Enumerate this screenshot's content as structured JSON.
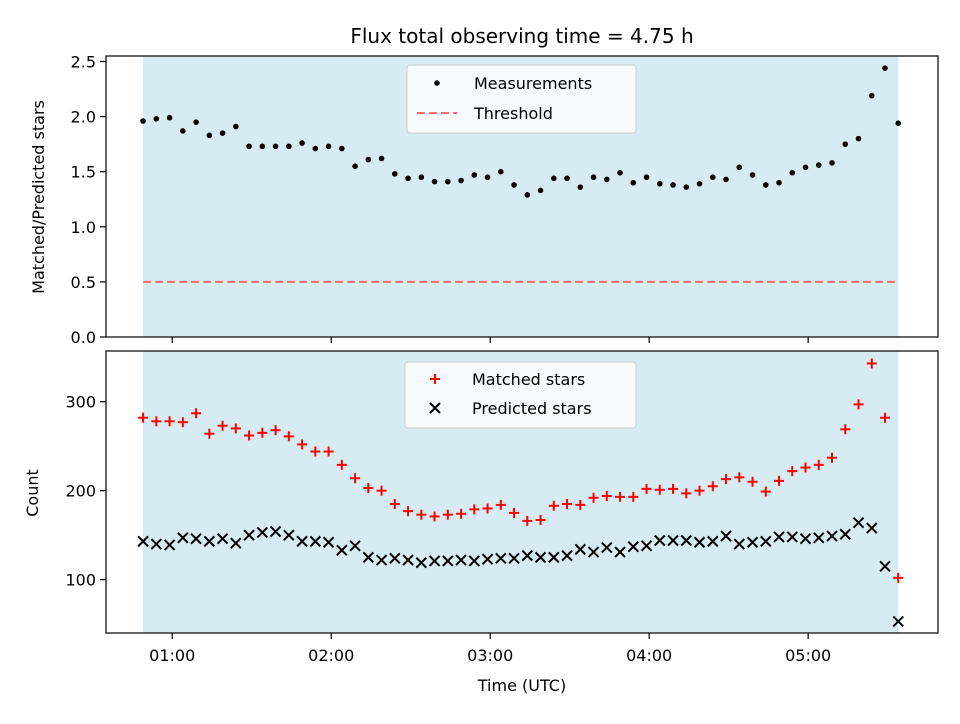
{
  "chart_data": [
    {
      "type": "scatter",
      "title": "Flux total observing time = 4.75 h",
      "xlabel": "",
      "ylabel": "Matched/Predicted stars",
      "ylim": [
        0,
        2.55
      ],
      "yticks": [
        "0.0",
        "0.5",
        "1.0",
        "1.5",
        "2.0",
        "2.5"
      ],
      "ytick_values": [
        0,
        0.5,
        1.0,
        1.5,
        2.0,
        2.5
      ],
      "legend_placement": "top-center",
      "observing_span": [
        "00:49",
        "05:34"
      ],
      "span_color": "#add8e6",
      "series": [
        {
          "name": "Measurements",
          "marker": "dot",
          "color": "#000000",
          "x": [
            "00:49",
            "00:54",
            "00:59",
            "01:04",
            "01:09",
            "01:14",
            "01:19",
            "01:24",
            "01:29",
            "01:34",
            "01:39",
            "01:44",
            "01:49",
            "01:54",
            "01:59",
            "02:04",
            "02:09",
            "02:14",
            "02:19",
            "02:24",
            "02:29",
            "02:34",
            "02:39",
            "02:44",
            "02:49",
            "02:54",
            "02:59",
            "03:04",
            "03:09",
            "03:14",
            "03:19",
            "03:24",
            "03:29",
            "03:34",
            "03:39",
            "03:44",
            "03:49",
            "03:54",
            "03:59",
            "04:04",
            "04:09",
            "04:14",
            "04:19",
            "04:24",
            "04:29",
            "04:34",
            "04:39",
            "04:44",
            "04:49",
            "04:54",
            "04:59",
            "05:04",
            "05:09",
            "05:14",
            "05:19",
            "05:24",
            "05:29",
            "05:34"
          ],
          "values": [
            1.96,
            1.98,
            1.99,
            1.87,
            1.95,
            1.83,
            1.85,
            1.91,
            1.73,
            1.73,
            1.73,
            1.73,
            1.76,
            1.71,
            1.73,
            1.71,
            1.55,
            1.61,
            1.62,
            1.48,
            1.44,
            1.45,
            1.41,
            1.41,
            1.42,
            1.47,
            1.45,
            1.5,
            1.38,
            1.29,
            1.33,
            1.44,
            1.44,
            1.36,
            1.45,
            1.43,
            1.49,
            1.4,
            1.45,
            1.39,
            1.38,
            1.36,
            1.39,
            1.45,
            1.43,
            1.54,
            1.47,
            1.38,
            1.4,
            1.49,
            1.54,
            1.56,
            1.58,
            1.75,
            1.8,
            2.19,
            2.44,
            1.94
          ]
        },
        {
          "name": "Threshold",
          "marker": "dashed-line",
          "color": "#ff6b6b",
          "y": 0.5
        }
      ]
    },
    {
      "type": "scatter",
      "title": "",
      "xlabel": "Time (UTC)",
      "ylabel": "Count",
      "ylim": [
        40,
        357
      ],
      "yticks": [
        "100",
        "200",
        "300"
      ],
      "ytick_values": [
        100,
        200,
        300
      ],
      "xlim": [
        "00:35",
        "05:49"
      ],
      "xticks": [
        "01:00",
        "02:00",
        "03:00",
        "04:00",
        "05:00"
      ],
      "legend_placement": "top-center",
      "observing_span": [
        "00:49",
        "05:34"
      ],
      "span_color": "#add8e6",
      "x": [
        "00:49",
        "00:54",
        "00:59",
        "01:04",
        "01:09",
        "01:14",
        "01:19",
        "01:24",
        "01:29",
        "01:34",
        "01:39",
        "01:44",
        "01:49",
        "01:54",
        "01:59",
        "02:04",
        "02:09",
        "02:14",
        "02:19",
        "02:24",
        "02:29",
        "02:34",
        "02:39",
        "02:44",
        "02:49",
        "02:54",
        "02:59",
        "03:04",
        "03:09",
        "03:14",
        "03:19",
        "03:24",
        "03:29",
        "03:34",
        "03:39",
        "03:44",
        "03:49",
        "03:54",
        "03:59",
        "04:04",
        "04:09",
        "04:14",
        "04:19",
        "04:24",
        "04:29",
        "04:34",
        "04:39",
        "04:44",
        "04:49",
        "04:54",
        "04:59",
        "05:04",
        "05:09",
        "05:14",
        "05:19",
        "05:24",
        "05:29",
        "05:34"
      ],
      "series": [
        {
          "name": "Matched stars",
          "marker": "plus",
          "color": "#ff0000",
          "values": [
            282,
            278,
            278,
            277,
            287,
            264,
            273,
            270,
            262,
            265,
            268,
            261,
            252,
            244,
            244,
            229,
            214,
            203,
            200,
            185,
            177,
            173,
            171,
            173,
            174,
            179,
            180,
            184,
            175,
            166,
            167,
            183,
            185,
            184,
            192,
            194,
            193,
            193,
            202,
            201,
            202,
            197,
            200,
            205,
            213,
            215,
            210,
            199,
            211,
            222,
            226,
            229,
            237,
            269,
            297,
            343,
            282,
            102
          ]
        },
        {
          "name": "Predicted stars",
          "marker": "x",
          "color": "#000000",
          "values": [
            143,
            140,
            139,
            147,
            146,
            143,
            146,
            141,
            150,
            153,
            154,
            150,
            143,
            143,
            142,
            133,
            138,
            125,
            122,
            124,
            122,
            119,
            121,
            121,
            122,
            121,
            123,
            124,
            124,
            127,
            125,
            125,
            127,
            134,
            131,
            136,
            131,
            137,
            138,
            144,
            144,
            144,
            142,
            143,
            149,
            140,
            142,
            143,
            148,
            148,
            146,
            147,
            149,
            151,
            164,
            158,
            115,
            53
          ]
        }
      ]
    }
  ]
}
